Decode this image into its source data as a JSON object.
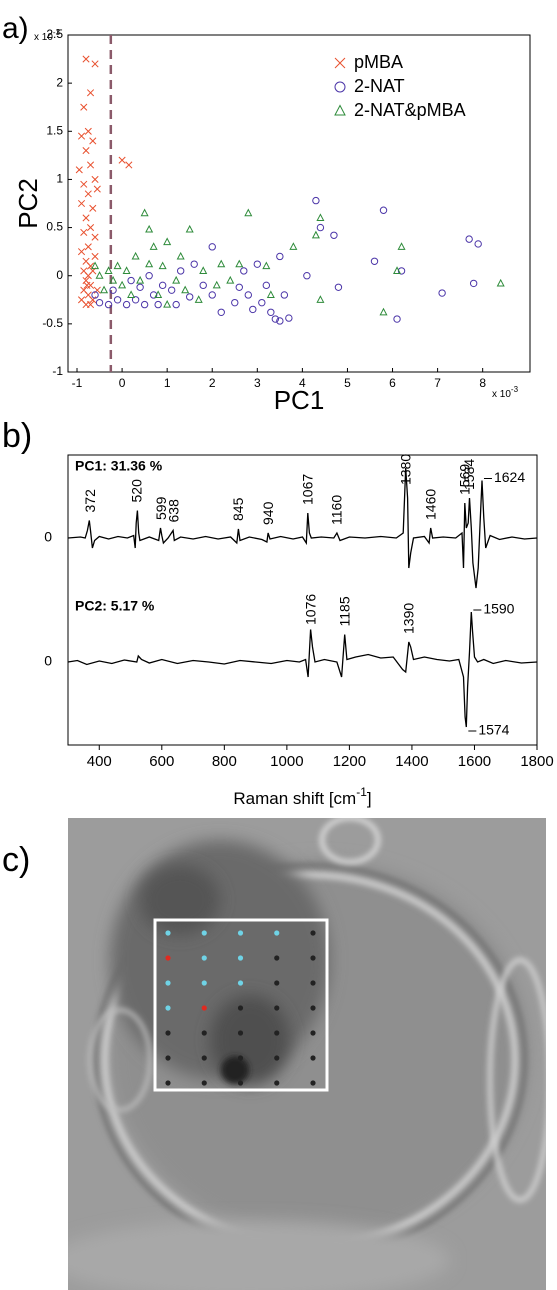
{
  "chart_data": [
    {
      "type": "scatter",
      "panel_label": "a)",
      "x_label": "PC1",
      "y_label": "PC2",
      "x_multiplier": {
        "base": "x 10",
        "exponent": "-3"
      },
      "y_multiplier": {
        "base": "x 10",
        "exponent": "-3"
      },
      "xlim": [
        -1.2,
        9.05
      ],
      "ylim": [
        -1,
        2.5
      ],
      "xticks": [
        -1,
        0,
        1,
        2,
        3,
        4,
        5,
        6,
        7,
        8
      ],
      "yticks": [
        -1,
        -0.5,
        0,
        0.5,
        1,
        1.5,
        2,
        2.5
      ],
      "vline": {
        "x": -0.25,
        "color": "#8b5a6a"
      },
      "legend": "upper right",
      "series": [
        {
          "name": "pMBA",
          "color": "#e8502e",
          "marker": "x",
          "x": [
            -0.8,
            -0.6,
            -0.7,
            -0.85,
            -0.75,
            -0.9,
            -0.65,
            -0.8,
            -0.95,
            -0.7,
            -0.6,
            -0.85,
            -0.75,
            -0.9,
            -0.65,
            -0.8,
            -0.7,
            -0.85,
            -0.6,
            -0.75,
            -0.9,
            -0.8,
            -0.7,
            -0.85,
            -0.75,
            -0.8,
            -0.7,
            -0.85,
            -0.75,
            -0.65,
            -0.8,
            -0.7,
            0.0,
            0.15,
            -0.55,
            -0.6,
            -0.9,
            -0.55,
            -0.65,
            -0.78
          ],
          "values": [
            2.25,
            2.2,
            1.9,
            1.75,
            1.5,
            1.45,
            1.4,
            1.3,
            1.1,
            1.15,
            1.0,
            0.95,
            0.85,
            0.75,
            0.7,
            0.6,
            0.5,
            0.45,
            0.4,
            0.3,
            0.25,
            0.15,
            0.1,
            0.05,
            0.0,
            -0.05,
            -0.1,
            -0.15,
            -0.2,
            -0.25,
            -0.3,
            -0.3,
            1.2,
            1.15,
            0.9,
            0.2,
            -0.25,
            -0.15,
            0.05,
            -0.1
          ]
        },
        {
          "name": "2-NAT",
          "color": "#4b35a8",
          "marker": "o",
          "x": [
            4.3,
            5.8,
            7.7,
            7.9,
            4.4,
            4.7,
            3.5,
            4.1,
            5.6,
            6.2,
            6.1,
            7.1,
            7.8,
            4.8,
            3.3,
            3.5,
            3.4,
            3.7,
            3.1,
            3.2,
            2.8,
            2.6,
            2.5,
            2.2,
            2.0,
            2.0,
            1.8,
            1.5,
            1.3,
            1.1,
            0.9,
            0.7,
            0.5,
            0.3,
            0.1,
            -0.1,
            -0.3,
            -0.5,
            -0.6,
            0.2,
            0.6,
            1.6,
            2.7,
            3.0,
            3.6,
            2.9,
            1.2,
            0.4,
            -0.2,
            0.8
          ],
          "values": [
            0.78,
            0.68,
            0.38,
            0.33,
            0.5,
            0.42,
            0.2,
            0.0,
            0.15,
            0.05,
            -0.45,
            -0.18,
            -0.08,
            -0.12,
            -0.38,
            -0.47,
            -0.45,
            -0.44,
            -0.28,
            -0.1,
            -0.2,
            -0.12,
            -0.28,
            -0.38,
            -0.2,
            0.3,
            -0.1,
            -0.22,
            0.05,
            -0.15,
            -0.1,
            -0.2,
            -0.3,
            -0.25,
            -0.3,
            -0.25,
            -0.3,
            -0.28,
            -0.2,
            -0.05,
            0.0,
            0.12,
            0.05,
            0.12,
            -0.2,
            -0.35,
            -0.3,
            -0.12,
            -0.15,
            -0.3
          ]
        },
        {
          "name": "2-NAT&pMBA",
          "color": "#2e8b3a",
          "marker": "triangle",
          "x": [
            0.5,
            0.6,
            0.7,
            1.5,
            1.0,
            2.8,
            4.4,
            4.3,
            3.8,
            3.2,
            6.2,
            6.1,
            5.8,
            4.4,
            8.4,
            2.2,
            1.8,
            1.2,
            0.9,
            0.3,
            0.1,
            -0.1,
            -0.3,
            -0.5,
            -0.4,
            0.0,
            0.4,
            0.8,
            1.4,
            2.4,
            2.6,
            3.3,
            1.7,
            0.2,
            -0.2,
            1.0,
            2.1,
            0.6,
            1.3,
            -0.6
          ],
          "values": [
            0.65,
            0.48,
            0.3,
            0.48,
            0.35,
            0.65,
            0.6,
            0.42,
            0.3,
            0.1,
            0.3,
            0.05,
            -0.38,
            -0.25,
            -0.08,
            0.12,
            0.05,
            -0.05,
            0.1,
            0.2,
            0.05,
            0.1,
            0.05,
            0.0,
            -0.15,
            -0.1,
            -0.05,
            -0.2,
            -0.15,
            -0.05,
            0.12,
            -0.2,
            -0.25,
            -0.2,
            -0.05,
            -0.3,
            -0.1,
            0.12,
            0.2,
            0.1
          ]
        }
      ]
    },
    {
      "type": "line",
      "panel_label": "b)",
      "title": "PC1: 31.36 %",
      "color": "#000000",
      "xlim": [
        300,
        1800
      ],
      "ylim": [
        -1.14,
        1.66
      ],
      "yticks": [
        0
      ],
      "x": [
        300,
        340,
        355,
        362,
        368,
        372,
        378,
        385,
        400,
        430,
        460,
        490,
        510,
        515,
        518,
        522,
        526,
        530,
        560,
        590,
        596,
        600,
        605,
        620,
        636,
        640,
        660,
        700,
        740,
        780,
        820,
        840,
        845,
        850,
        880,
        920,
        936,
        940,
        946,
        980,
        1020,
        1050,
        1062,
        1067,
        1072,
        1078,
        1110,
        1150,
        1160,
        1170,
        1200,
        1250,
        1300,
        1350,
        1372,
        1380,
        1386,
        1390,
        1396,
        1405,
        1440,
        1455,
        1460,
        1466,
        1500,
        1540,
        1560,
        1565,
        1569,
        1574,
        1580,
        1584,
        1590,
        1595,
        1605,
        1612,
        1618,
        1624,
        1630,
        1636,
        1650,
        1680,
        1720,
        1760,
        1800
      ],
      "values": [
        0.0,
        0.02,
        0.0,
        0.15,
        0.35,
        0.15,
        -0.2,
        -0.05,
        0.03,
        -0.02,
        0.03,
        0.0,
        0.05,
        -0.2,
        0.3,
        0.55,
        0.1,
        -0.05,
        0.02,
        -0.05,
        0.2,
        0.05,
        -0.1,
        0.0,
        0.15,
        -0.05,
        0.02,
        -0.02,
        0.03,
        -0.02,
        0.02,
        -0.1,
        0.18,
        -0.05,
        0.02,
        -0.03,
        -0.08,
        0.1,
        -0.02,
        0.03,
        -0.02,
        0.02,
        -0.1,
        0.5,
        0.1,
        0.0,
        0.02,
        0.0,
        0.1,
        -0.05,
        0.02,
        0.0,
        0.03,
        0.0,
        0.1,
        1.4,
        0.8,
        -0.6,
        -0.3,
        0.0,
        0.03,
        -0.1,
        0.2,
        0.0,
        0.02,
        0.0,
        0.1,
        -0.6,
        0.7,
        0.2,
        0.3,
        0.8,
        0.2,
        -0.5,
        -1.0,
        -0.6,
        0.3,
        1.15,
        0.4,
        -0.2,
        0.05,
        -0.03,
        0.02,
        -0.02,
        0.0
      ],
      "peak_labels": [
        372,
        520,
        599,
        638,
        845,
        940,
        1067,
        1160,
        1380,
        1460,
        1569,
        1584,
        1624
      ]
    },
    {
      "type": "line",
      "title": "PC2: 5.17 %",
      "color": "#000000",
      "x_label": {
        "text": "Raman shift [cm",
        "sup": "-1",
        "end": "]"
      },
      "xlim": [
        300,
        1800
      ],
      "xticks": [
        400,
        600,
        800,
        1000,
        1200,
        1400,
        1600,
        1800
      ],
      "ylim": [
        -1.66,
        1.34
      ],
      "yticks": [
        0
      ],
      "x": [
        300,
        330,
        360,
        400,
        440,
        480,
        520,
        525,
        535,
        560,
        600,
        650,
        700,
        750,
        800,
        850,
        900,
        950,
        1000,
        1040,
        1060,
        1068,
        1076,
        1082,
        1090,
        1120,
        1160,
        1175,
        1185,
        1192,
        1220,
        1260,
        1300,
        1340,
        1370,
        1380,
        1390,
        1396,
        1405,
        1440,
        1480,
        1520,
        1550,
        1565,
        1570,
        1574,
        1578,
        1584,
        1590,
        1594,
        1600,
        1610,
        1630,
        1660,
        1700,
        1750,
        1800
      ],
      "values": [
        0.0,
        0.03,
        -0.05,
        0.02,
        -0.03,
        0.04,
        0.0,
        0.12,
        0.05,
        -0.02,
        0.05,
        -0.03,
        0.03,
        0.0,
        -0.04,
        0.03,
        0.0,
        -0.03,
        0.03,
        0.0,
        0.05,
        -0.3,
        0.65,
        0.3,
        0.0,
        0.05,
        0.0,
        -0.3,
        0.55,
        0.05,
        0.1,
        0.15,
        0.08,
        0.1,
        -0.15,
        -0.2,
        0.4,
        0.3,
        0.05,
        0.1,
        0.05,
        0.02,
        0.05,
        -0.3,
        -1.1,
        -1.3,
        -0.5,
        0.2,
        1.0,
        0.6,
        0.1,
        0.0,
        0.05,
        -0.03,
        0.03,
        -0.02,
        0.0
      ],
      "peak_labels": [
        1076,
        1185,
        1390,
        1590,
        1574
      ]
    }
  ],
  "image_panel": {
    "panel_label": "c)",
    "dot_grid": [
      [
        "#6fd3e6",
        "#6fd3e6",
        "#6fd3e6",
        "#6fd3e6",
        "#222222"
      ],
      [
        "#e02a20",
        "#6fd3e6",
        "#6fd3e6",
        "#222222",
        "#222222"
      ],
      [
        "#6fd3e6",
        "#6fd3e6",
        "#6fd3e6",
        "#222222",
        "#222222"
      ],
      [
        "#6fd3e6",
        "#e02a20",
        "#222222",
        "#222222",
        "#222222"
      ],
      [
        "#222222",
        "#222222",
        "#222222",
        "#222222",
        "#222222"
      ],
      [
        "#222222",
        "#222222",
        "#222222",
        "#222222",
        "#222222"
      ],
      [
        "#222222",
        "#222222",
        "#222222",
        "#222222",
        "#222222"
      ]
    ]
  }
}
